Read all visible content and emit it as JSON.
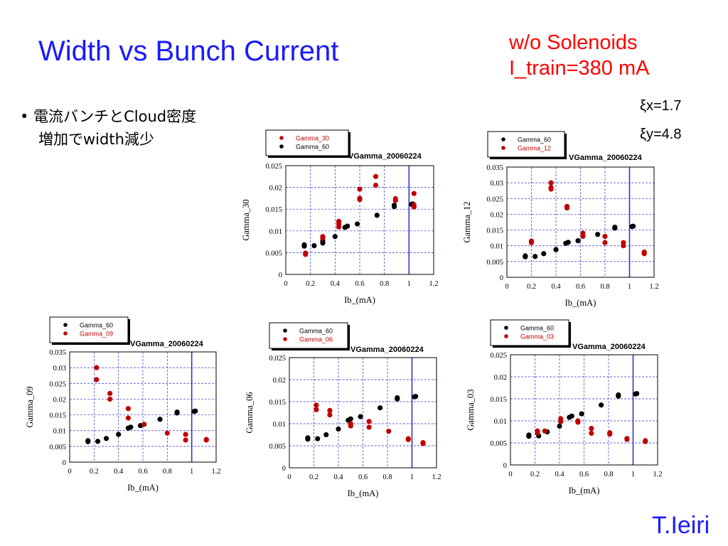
{
  "slide": {
    "title": "Width vs Bunch Current",
    "condition_line1": "w/o Solenoids",
    "condition_line2": "I_train=380 mA",
    "xi_x": "ξx=1.7",
    "xi_y": "ξy=4.8",
    "bullet_line1": "• 電流バンチとCloud密度",
    "bullet_line2": "増加でwidth減少",
    "author": "T.Ieiri"
  },
  "colors": {
    "black_series": "#000000",
    "red_series": "#c00000",
    "grid": "#3333cc",
    "title_blue": "#1a1aff",
    "cond_red": "#ff0000"
  },
  "chart_data": [
    {
      "type": "scatter",
      "title": "VGamma_20060224",
      "xlabel": "Ib_(mA)",
      "ylabel": "Gamma_30",
      "xlim": [
        0,
        1.2
      ],
      "ylim": [
        0,
        0.025
      ],
      "xticks": [
        "0",
        "0.2",
        "0.4",
        "0.6",
        "0.8",
        "1",
        "1.2"
      ],
      "yticks": [
        "0",
        "0.005",
        "0.01",
        "0.015",
        "0.02",
        "0.025"
      ],
      "legend": [
        {
          "name": "Gamma_30",
          "color": "red"
        },
        {
          "name": "Gamma_60",
          "color": "black"
        }
      ],
      "series": [
        {
          "name": "Gamma_60",
          "color": "black",
          "points": [
            [
              0.15,
              0.0068
            ],
            [
              0.15,
              0.0065
            ],
            [
              0.23,
              0.0066
            ],
            [
              0.3,
              0.0072
            ],
            [
              0.3,
              0.0077
            ],
            [
              0.4,
              0.0087
            ],
            [
              0.48,
              0.0108
            ],
            [
              0.5,
              0.0111
            ],
            [
              0.58,
              0.0116
            ],
            [
              0.74,
              0.0136
            ],
            [
              0.88,
              0.0156
            ],
            [
              0.88,
              0.0159
            ],
            [
              1.02,
              0.0161
            ],
            [
              1.03,
              0.0162
            ]
          ]
        },
        {
          "name": "Gamma_30",
          "color": "red",
          "points": [
            [
              0.16,
              0.0046
            ],
            [
              0.16,
              0.0049
            ],
            [
              0.3,
              0.0083
            ],
            [
              0.3,
              0.0087
            ],
            [
              0.43,
              0.0109
            ],
            [
              0.43,
              0.0116
            ],
            [
              0.43,
              0.0122
            ],
            [
              0.6,
              0.0172
            ],
            [
              0.6,
              0.0175
            ],
            [
              0.6,
              0.0196
            ],
            [
              0.73,
              0.0205
            ],
            [
              0.73,
              0.0225
            ],
            [
              0.89,
              0.017
            ],
            [
              0.89,
              0.0174
            ],
            [
              1.04,
              0.0155
            ],
            [
              1.04,
              0.016
            ],
            [
              1.04,
              0.0186
            ]
          ]
        }
      ]
    },
    {
      "type": "scatter",
      "title": "VGamma_20060224",
      "xlabel": "Ib_(mA)",
      "ylabel": "Gamma_12",
      "xlim": [
        0,
        1.2
      ],
      "ylim": [
        0,
        0.035
      ],
      "xticks": [
        "0",
        "0.2",
        "0.4",
        "0.6",
        "0.8",
        "1",
        "1.2"
      ],
      "yticks": [
        "0",
        "0.005",
        "0.01",
        "0.015",
        "0.02",
        "0.025",
        "0.03",
        "0.035"
      ],
      "legend": [
        {
          "name": "Gamma_60",
          "color": "black"
        },
        {
          "name": "Gamma_12",
          "color": "red"
        }
      ],
      "series": [
        {
          "name": "Gamma_60",
          "color": "black",
          "points": [
            [
              0.15,
              0.0068
            ],
            [
              0.15,
              0.0065
            ],
            [
              0.23,
              0.0066
            ],
            [
              0.3,
              0.0075
            ],
            [
              0.4,
              0.0088
            ],
            [
              0.48,
              0.0108
            ],
            [
              0.5,
              0.0111
            ],
            [
              0.58,
              0.0116
            ],
            [
              0.74,
              0.0136
            ],
            [
              0.88,
              0.0156
            ],
            [
              0.88,
              0.0159
            ],
            [
              1.02,
              0.0161
            ],
            [
              1.03,
              0.0162
            ]
          ]
        },
        {
          "name": "Gamma_12",
          "color": "red",
          "points": [
            [
              0.2,
              0.0115
            ],
            [
              0.2,
              0.011
            ],
            [
              0.36,
              0.03
            ],
            [
              0.36,
              0.0285
            ],
            [
              0.36,
              0.028
            ],
            [
              0.49,
              0.0225
            ],
            [
              0.49,
              0.022
            ],
            [
              0.62,
              0.014
            ],
            [
              0.62,
              0.013
            ],
            [
              0.8,
              0.013
            ],
            [
              0.8,
              0.011
            ],
            [
              0.95,
              0.011
            ],
            [
              0.95,
              0.01
            ],
            [
              1.12,
              0.008
            ],
            [
              1.12,
              0.0075
            ]
          ]
        }
      ]
    },
    {
      "type": "scatter",
      "title": "VGamma_20060224",
      "xlabel": "Ib_(mA)",
      "ylabel": "Gamma_09",
      "xlim": [
        0,
        1.2
      ],
      "ylim": [
        0,
        0.035
      ],
      "xticks": [
        "0",
        "0.2",
        "0.4",
        "0.6",
        "0.8",
        "1",
        "1.2"
      ],
      "yticks": [
        "0",
        "0.005",
        "0.01",
        "0.015",
        "0.02",
        "0.025",
        "0.03",
        "0.035"
      ],
      "legend": [
        {
          "name": "Gamma_60",
          "color": "black"
        },
        {
          "name": "Gamma_09",
          "color": "red"
        }
      ],
      "series": [
        {
          "name": "Gamma_60",
          "color": "black",
          "points": [
            [
              0.15,
              0.0068
            ],
            [
              0.15,
              0.0065
            ],
            [
              0.23,
              0.0066
            ],
            [
              0.3,
              0.0075
            ],
            [
              0.4,
              0.0088
            ],
            [
              0.48,
              0.0108
            ],
            [
              0.5,
              0.0111
            ],
            [
              0.58,
              0.0116
            ],
            [
              0.74,
              0.0136
            ],
            [
              0.88,
              0.0156
            ],
            [
              0.88,
              0.0159
            ],
            [
              1.02,
              0.0161
            ],
            [
              1.03,
              0.0162
            ]
          ]
        },
        {
          "name": "Gamma_09",
          "color": "red",
          "points": [
            [
              0.22,
              0.03
            ],
            [
              0.22,
              0.0262
            ],
            [
              0.33,
              0.0218
            ],
            [
              0.33,
              0.02
            ],
            [
              0.48,
              0.017
            ],
            [
              0.48,
              0.014
            ],
            [
              0.61,
              0.012
            ],
            [
              0.8,
              0.0092
            ],
            [
              0.95,
              0.0088
            ],
            [
              0.95,
              0.007
            ],
            [
              1.12,
              0.0072
            ],
            [
              1.12,
              0.007
            ]
          ]
        }
      ]
    },
    {
      "type": "scatter",
      "title": "VGamma_20060224",
      "xlabel": "Ib_(mA)",
      "ylabel": "Gamma_06",
      "xlim": [
        0,
        1.2
      ],
      "ylim": [
        0,
        0.025
      ],
      "xticks": [
        "0",
        "0.2",
        "0.4",
        "0.6",
        "0.8",
        "1",
        "1.2"
      ],
      "yticks": [
        "0",
        "0.005",
        "0.01",
        "0.015",
        "0.02",
        "0.025"
      ],
      "legend": [
        {
          "name": "Gamma_60",
          "color": "black"
        },
        {
          "name": "Gamma_06",
          "color": "red"
        }
      ],
      "series": [
        {
          "name": "Gamma_60",
          "color": "black",
          "points": [
            [
              0.15,
              0.0068
            ],
            [
              0.15,
              0.0065
            ],
            [
              0.23,
              0.0066
            ],
            [
              0.3,
              0.0075
            ],
            [
              0.4,
              0.0088
            ],
            [
              0.48,
              0.0108
            ],
            [
              0.5,
              0.0111
            ],
            [
              0.58,
              0.0116
            ],
            [
              0.74,
              0.0136
            ],
            [
              0.88,
              0.0156
            ],
            [
              0.88,
              0.0159
            ],
            [
              1.02,
              0.0161
            ],
            [
              1.03,
              0.0162
            ]
          ]
        },
        {
          "name": "Gamma_06",
          "color": "red",
          "points": [
            [
              0.22,
              0.0142
            ],
            [
              0.22,
              0.0132
            ],
            [
              0.33,
              0.013
            ],
            [
              0.33,
              0.012
            ],
            [
              0.5,
              0.01
            ],
            [
              0.5,
              0.0095
            ],
            [
              0.65,
              0.0105
            ],
            [
              0.65,
              0.0092
            ],
            [
              0.81,
              0.0083
            ],
            [
              0.97,
              0.0066
            ],
            [
              0.97,
              0.0064
            ],
            [
              1.09,
              0.0057
            ],
            [
              1.09,
              0.0055
            ]
          ]
        }
      ]
    },
    {
      "type": "scatter",
      "title": "VGamma_20060224",
      "xlabel": "Ib_(mA)",
      "ylabel": "Gamma_03",
      "xlim": [
        0,
        1.2
      ],
      "ylim": [
        0,
        0.025
      ],
      "xticks": [
        "0",
        "0.2",
        "0.4",
        "0.6",
        "0.8",
        "1",
        "1.2"
      ],
      "yticks": [
        "0",
        "0.005",
        "0.01",
        "0.015",
        "0.02",
        "0.025"
      ],
      "legend": [
        {
          "name": "Gamma_60",
          "color": "black"
        },
        {
          "name": "Gamma_03",
          "color": "red"
        }
      ],
      "series": [
        {
          "name": "Gamma_60",
          "color": "black",
          "points": [
            [
              0.15,
              0.0068
            ],
            [
              0.15,
              0.0065
            ],
            [
              0.23,
              0.0066
            ],
            [
              0.3,
              0.0075
            ],
            [
              0.4,
              0.0088
            ],
            [
              0.48,
              0.0108
            ],
            [
              0.5,
              0.0111
            ],
            [
              0.58,
              0.0116
            ],
            [
              0.74,
              0.0136
            ],
            [
              0.88,
              0.0156
            ],
            [
              0.88,
              0.0159
            ],
            [
              1.02,
              0.0161
            ],
            [
              1.03,
              0.0162
            ]
          ]
        },
        {
          "name": "Gamma_03",
          "color": "red",
          "points": [
            [
              0.22,
              0.0077
            ],
            [
              0.22,
              0.0072
            ],
            [
              0.28,
              0.0077
            ],
            [
              0.41,
              0.0105
            ],
            [
              0.41,
              0.0098
            ],
            [
              0.55,
              0.01
            ],
            [
              0.55,
              0.0097
            ],
            [
              0.66,
              0.0083
            ],
            [
              0.66,
              0.0072
            ],
            [
              0.81,
              0.0073
            ],
            [
              0.81,
              0.007
            ],
            [
              0.95,
              0.006
            ],
            [
              0.95,
              0.0058
            ],
            [
              1.1,
              0.0055
            ],
            [
              1.1,
              0.0053
            ]
          ]
        }
      ]
    }
  ]
}
